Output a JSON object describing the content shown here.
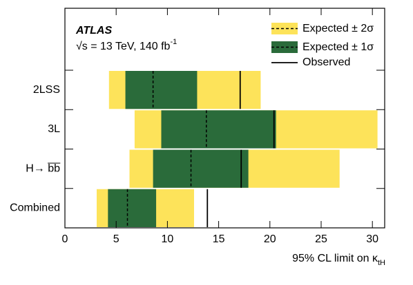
{
  "chart_data": {
    "type": "limit",
    "experiment": "ATLAS",
    "energy": "√s = 13 TeV, 140 fb",
    "energy_superscript": "-1",
    "xlabel": "95% CL limit on κ",
    "xlabel_subscript": "tH",
    "categories": [
      "2LSS",
      "3L",
      "H→ b̅b̅",
      "Combined"
    ],
    "series": [
      {
        "name": "Expected ± 2σ",
        "color": "#fde35a",
        "low": [
          4.3,
          6.8,
          6.3,
          3.1
        ],
        "high": [
          19.1,
          30.5,
          26.8,
          12.6
        ]
      },
      {
        "name": "Expected ± 1σ",
        "color": "#2a6b3a",
        "low": [
          5.9,
          9.4,
          8.6,
          4.2
        ],
        "high": [
          12.9,
          20.6,
          17.9,
          8.9
        ]
      },
      {
        "name": "Observed",
        "color": "#000000",
        "values": [
          17.1,
          20.4,
          17.2,
          13.9
        ]
      }
    ],
    "expected": [
      8.6,
      13.8,
      12.3,
      6.1
    ],
    "xlim": [
      0,
      31.2
    ],
    "xticks": [
      0,
      5,
      10,
      15,
      20,
      25,
      30
    ]
  }
}
